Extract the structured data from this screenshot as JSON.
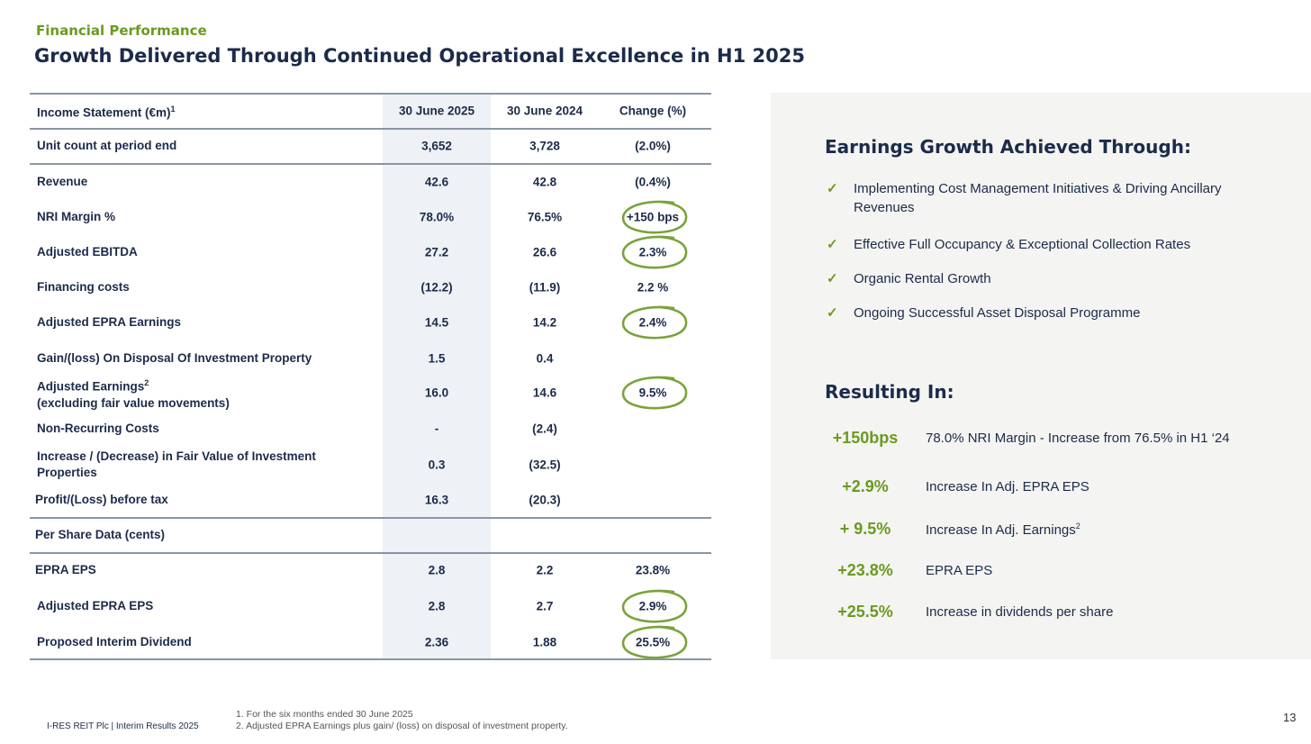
{
  "header": {
    "kicker": "Financial Performance",
    "title": "Growth Delivered Through Continued Operational Excellence in H1 2025"
  },
  "table": {
    "headers": [
      "Income Statement (€m)",
      "30 June 2025",
      "30 June 2024",
      "Change (%)"
    ],
    "header_sup": "1",
    "rows": [
      {
        "label": "Unit count at period end",
        "a": "3,652",
        "b": "3,728",
        "c": "(2.0%)"
      },
      {
        "label": "Revenue",
        "a": "42.6",
        "b": "42.8",
        "c": "(0.4%)"
      },
      {
        "label": "NRI Margin %",
        "a": "78.0%",
        "b": "76.5%",
        "c": "+150 bps",
        "circled": true
      },
      {
        "label": "Adjusted EBITDA",
        "a": "27.2",
        "b": "26.6",
        "c": "2.3%",
        "circled": true
      },
      {
        "label": "Financing costs",
        "a": "(12.2)",
        "b": "(11.9)",
        "c": "2.2 %"
      },
      {
        "label": "Adjusted EPRA Earnings",
        "a": "14.5",
        "b": "14.2",
        "c": "2.4%",
        "circled": true
      },
      {
        "label": "Gain/(loss) On Disposal Of Investment Property",
        "a": "1.5",
        "b": "0.4",
        "c": ""
      },
      {
        "label": "Adjusted Earnings",
        "label_sup": "2",
        "label2": "(excluding fair value movements)",
        "a": "16.0",
        "b": "14.6",
        "c": "9.5%",
        "circled": true
      },
      {
        "label": "Non-Recurring Costs",
        "a": "-",
        "b": "(2.4)",
        "c": ""
      },
      {
        "label": "Increase / (Decrease) in Fair Value of Investment",
        "label2": "Properties",
        "a": "0.3",
        "b": "(32.5)",
        "c": ""
      },
      {
        "label": "Profit/(Loss) before tax",
        "a": "16.3",
        "b": "(20.3)",
        "c": ""
      },
      {
        "label": "Per Share Data (cents)",
        "a": "",
        "b": "",
        "c": ""
      },
      {
        "label": "EPRA EPS",
        "a": "2.8",
        "b": "2.2",
        "c": "23.8%"
      },
      {
        "label": "Adjusted EPRA EPS",
        "a": "2.8",
        "b": "2.7",
        "c": "2.9%",
        "circled": true
      },
      {
        "label": "Proposed Interim Dividend",
        "a": "2.36",
        "b": "1.88",
        "c": "25.5%",
        "circled": true
      }
    ]
  },
  "panel": {
    "growth_title": "Earnings Growth Achieved Through:",
    "bullets": [
      "Implementing Cost Management Initiatives & Driving Ancillary Revenues",
      "Effective Full Occupancy & Exceptional Collection Rates",
      "Organic Rental Growth",
      "Ongoing Successful Asset Disposal Programme"
    ],
    "check": "✓",
    "result_title": "Resulting In:",
    "results": [
      {
        "value": "+150bps",
        "desc": "78.0% NRI Margin - Increase from 76.5% in H1 ‘24"
      },
      {
        "value": "+2.9%",
        "desc": "Increase In Adj. EPRA EPS"
      },
      {
        "value": "+ 9.5%",
        "desc": "Increase In Adj. Earnings",
        "sup": "2"
      },
      {
        "value": "+23.8%",
        "desc": "EPRA EPS"
      },
      {
        "value": "+25.5%",
        "desc": "Increase in dividends per share"
      }
    ]
  },
  "footer": {
    "company": "I-RES REIT Plc | Interim Results 2025",
    "notes": [
      "1. For the six months ended 30 June 2025",
      "2. Adjusted EPRA Earnings plus gain/ (loss) on disposal of investment property."
    ],
    "page": "13"
  },
  "colors": {
    "navy": "#1c2b4a",
    "green": "#6a9a1f",
    "panel": "#f4f4f2"
  }
}
